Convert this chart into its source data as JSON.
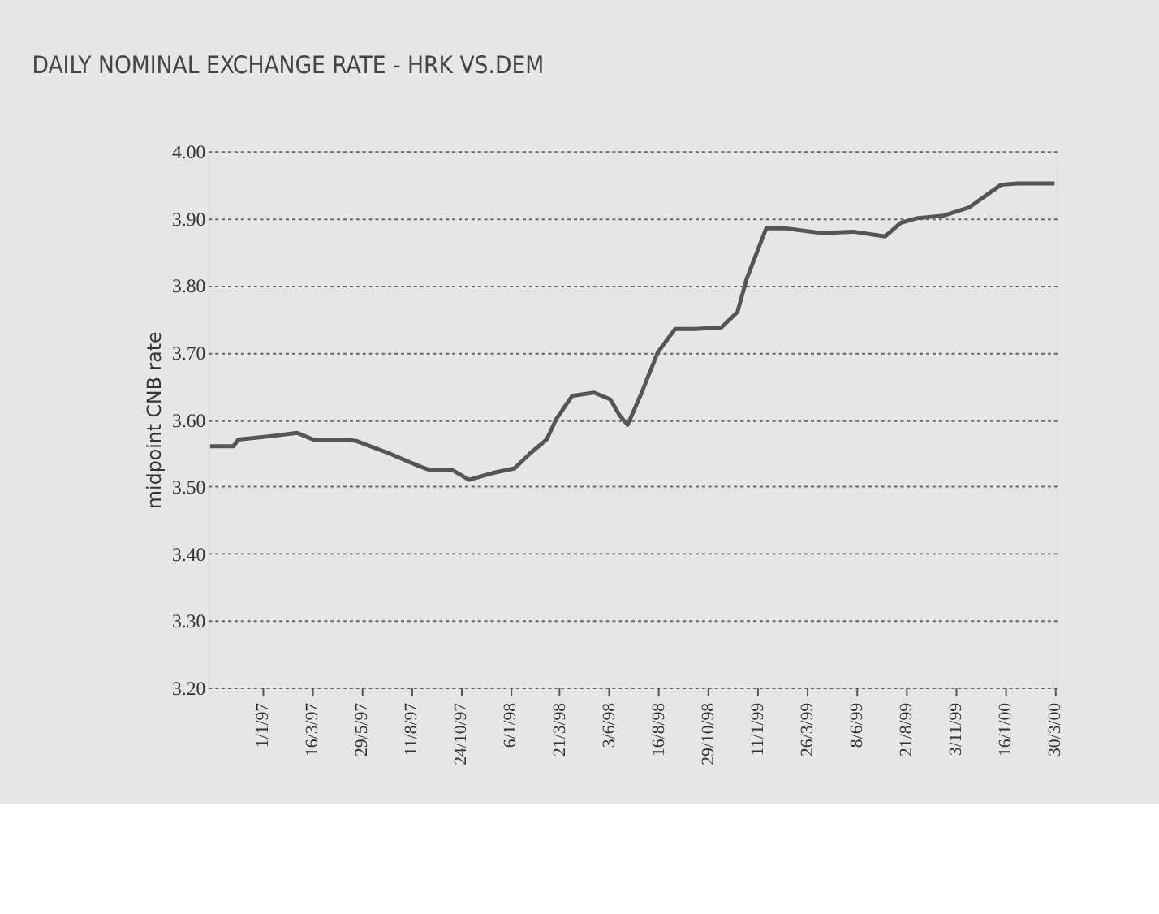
{
  "chart_data": {
    "type": "line",
    "title": "DAILY NOMINAL EXCHANGE RATE - HRK VS.DEM",
    "ylabel": "midpoint CNB rate",
    "x": [
      "1996-10-15",
      "1996-11-19",
      "1996-11-26",
      "1997-01-13",
      "1997-02-22",
      "1997-03-18",
      "1997-05-04",
      "1997-05-21",
      "1997-07-08",
      "1997-08-24",
      "1997-09-07",
      "1997-10-11",
      "1997-11-06",
      "1997-12-11",
      "1998-01-13",
      "1998-02-06",
      "1998-03-02",
      "1998-03-16",
      "1998-04-09",
      "1998-05-12",
      "1998-06-05",
      "1998-06-19",
      "1998-07-01",
      "1998-07-22",
      "1998-08-15",
      "1998-09-10",
      "1998-10-09",
      "1998-11-18",
      "1998-12-12",
      "1998-12-26",
      "1999-01-24",
      "1999-02-21",
      "1999-04-17",
      "1999-06-03",
      "1999-07-21",
      "1999-08-13",
      "1999-09-06",
      "1999-10-16",
      "1999-11-23",
      "2000-01-10",
      "2000-02-03",
      "2000-03-09",
      "2000-03-30"
    ],
    "series": [
      {
        "color": "#555555",
        "values": [
          3.56,
          3.56,
          3.57,
          3.575,
          3.58,
          3.57,
          3.57,
          3.568,
          3.55,
          3.53,
          3.525,
          3.525,
          3.51,
          3.52,
          3.527,
          3.55,
          3.57,
          3.6,
          3.635,
          3.64,
          3.63,
          3.606,
          3.592,
          3.64,
          3.7,
          3.735,
          3.735,
          3.737,
          3.76,
          3.81,
          3.885,
          3.885,
          3.878,
          3.88,
          3.873,
          3.893,
          3.9,
          3.904,
          3.916,
          3.95,
          3.952,
          3.952,
          3.952
        ]
      }
    ],
    "xlim": [
      "1996-10-12",
      "2000-04-02"
    ],
    "xticks": [
      {
        "value": "1997-01-01",
        "label": "1/1/97"
      },
      {
        "value": "1997-03-16",
        "label": "16/3/97"
      },
      {
        "value": "1997-05-29",
        "label": "29/5/97"
      },
      {
        "value": "1997-08-11",
        "label": "11/8/97"
      },
      {
        "value": "1997-10-24",
        "label": "24/10/97"
      },
      {
        "value": "1998-01-06",
        "label": "6/1/98"
      },
      {
        "value": "1998-03-21",
        "label": "21/3/98"
      },
      {
        "value": "1998-06-03",
        "label": "3/6/98"
      },
      {
        "value": "1998-08-16",
        "label": "16/8/98"
      },
      {
        "value": "1998-10-29",
        "label": "29/10/98"
      },
      {
        "value": "1999-01-11",
        "label": "11/1/99"
      },
      {
        "value": "1999-03-26",
        "label": "26/3/99"
      },
      {
        "value": "1999-06-08",
        "label": "8/6/99"
      },
      {
        "value": "1999-08-21",
        "label": "21/8/99"
      },
      {
        "value": "1999-11-03",
        "label": "3/11/99"
      },
      {
        "value": "2000-01-16",
        "label": "16/1/00"
      },
      {
        "value": "2000-03-30",
        "label": "30/3/00"
      }
    ],
    "ylim": [
      3.2,
      4.0
    ],
    "yticks": [
      {
        "value": 3.2,
        "label": "3.20"
      },
      {
        "value": 3.3,
        "label": "3.30"
      },
      {
        "value": 3.4,
        "label": "3.40"
      },
      {
        "value": 3.5,
        "label": "3.50"
      },
      {
        "value": 3.6,
        "label": "3.60"
      },
      {
        "value": 3.7,
        "label": "3.70"
      },
      {
        "value": 3.8,
        "label": "3.80"
      },
      {
        "value": 3.9,
        "label": "3.90"
      },
      {
        "value": 4.0,
        "label": "4.00"
      }
    ],
    "grid": "y",
    "legend": false,
    "marker": "none",
    "line_style": "solid"
  }
}
